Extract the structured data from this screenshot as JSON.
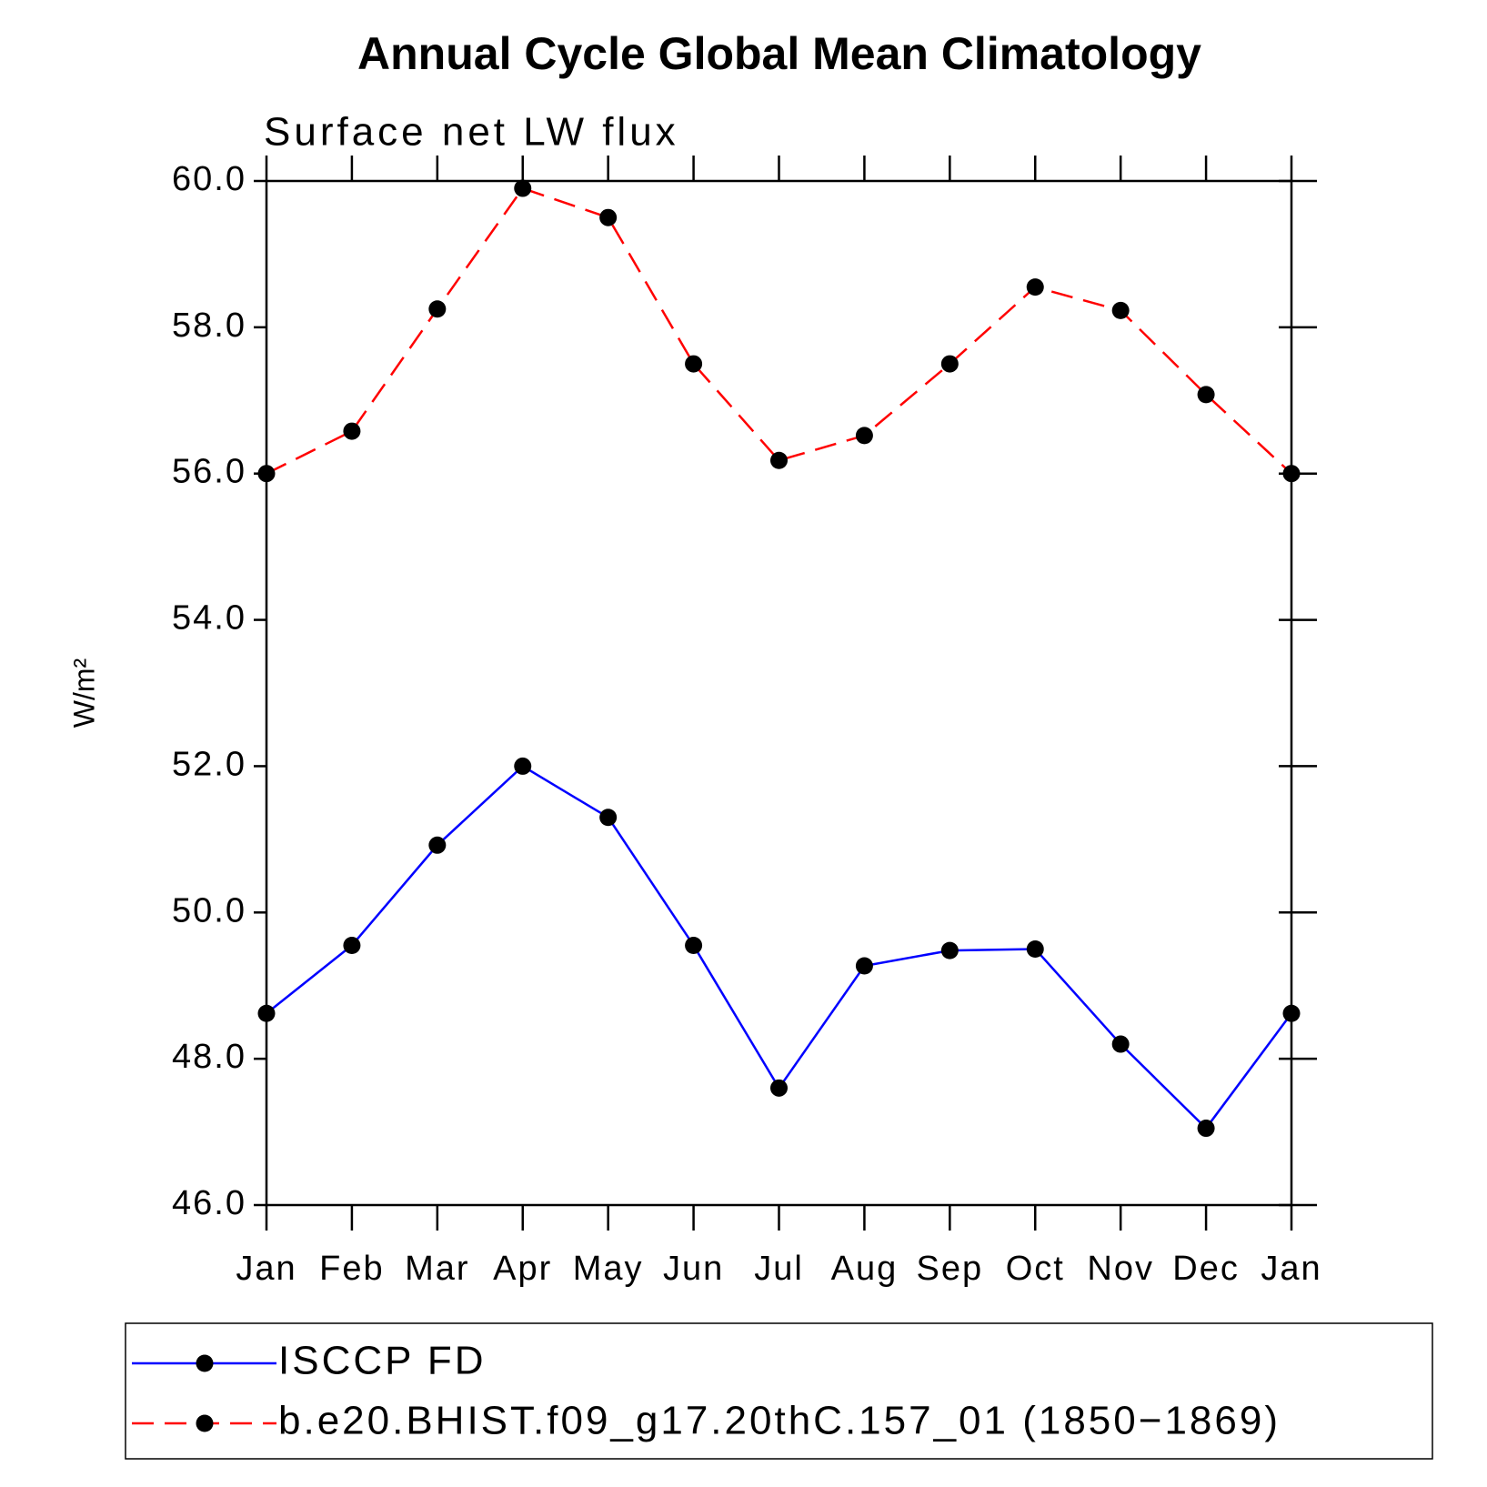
{
  "chart_data": {
    "type": "line",
    "title": "Annual Cycle Global Mean Climatology",
    "subtitle": "Surface net LW flux",
    "y_label": "W/m²",
    "categories": [
      "Jan",
      "Feb",
      "Mar",
      "Apr",
      "May",
      "Jun",
      "Jul",
      "Aug",
      "Sep",
      "Oct",
      "Nov",
      "Dec",
      "Jan"
    ],
    "ylim": [
      46,
      60
    ],
    "yticks": [
      {
        "value": 46,
        "label": "46.0"
      },
      {
        "value": 48,
        "label": "48.0"
      },
      {
        "value": 50,
        "label": "50.0"
      },
      {
        "value": 52,
        "label": "52.0"
      },
      {
        "value": 54,
        "label": "54.0"
      },
      {
        "value": 56,
        "label": "56.0"
      },
      {
        "value": 58,
        "label": "58.0"
      },
      {
        "value": 60,
        "label": "60.0"
      }
    ],
    "grid": false,
    "legend": "bottom",
    "series": [
      {
        "name": "ISCCP FD",
        "color": "#0000ff",
        "dash": "solid",
        "values": [
          48.62,
          49.55,
          50.92,
          52.0,
          51.3,
          49.55,
          47.6,
          49.27,
          49.48,
          49.5,
          48.2,
          47.05,
          48.62
        ]
      },
      {
        "name": "b.e20.BHIST.f09_g17.20thC.157_01 (1850−1869)",
        "color": "#ff0000",
        "dash": "dashed",
        "values": [
          56.0,
          56.58,
          58.25,
          59.9,
          59.5,
          57.5,
          56.18,
          56.52,
          57.5,
          58.55,
          58.23,
          57.08,
          56.0
        ]
      }
    ]
  }
}
